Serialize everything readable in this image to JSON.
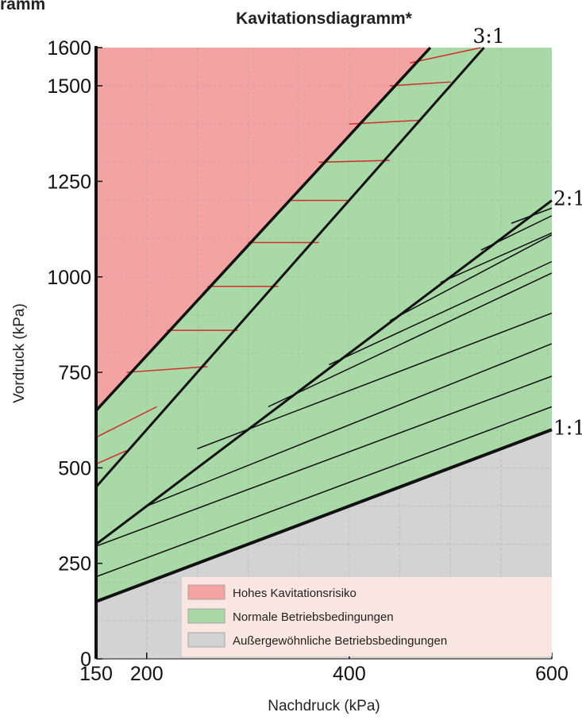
{
  "header": {
    "cropped_text": "ramm"
  },
  "chart_data": {
    "type": "area",
    "title": "Kavitationsdiagramm*",
    "xlabel": "Nachdruck (kPa)",
    "ylabel": "Vordruck (kPa)",
    "xlim": [
      150,
      600
    ],
    "ylim": [
      0,
      1600
    ],
    "x_ticks": [
      150,
      200,
      400,
      600
    ],
    "y_ticks": [
      0,
      250,
      500,
      750,
      1000,
      1250,
      1500,
      1600
    ],
    "grid": true,
    "regions": [
      {
        "name": "Hohes Kavitationsrisiko",
        "color": "#f4a3a3",
        "boundary": [
          [
            150,
            650
          ],
          [
            480,
            1600
          ],
          [
            150,
            1600
          ]
        ]
      },
      {
        "name": "Normale Betriebsbedingungen",
        "color": "#a9d9a6",
        "boundary": [
          [
            150,
            150
          ],
          [
            600,
            600
          ],
          [
            600,
            1600
          ],
          [
            480,
            1600
          ],
          [
            150,
            650
          ]
        ]
      },
      {
        "name": "Außergewöhnliche Betriebsbedingungen",
        "color": "#d3d3d3",
        "boundary": [
          [
            150,
            0
          ],
          [
            600,
            0
          ],
          [
            600,
            600
          ],
          [
            150,
            150
          ]
        ]
      }
    ],
    "ratio_lines": [
      {
        "label": "3:1",
        "points": [
          [
            150,
            450
          ],
          [
            533,
            1600
          ]
        ]
      },
      {
        "label": "2:1",
        "points": [
          [
            150,
            300
          ],
          [
            600,
            1200
          ]
        ]
      },
      {
        "label": "1:1",
        "points": [
          [
            150,
            150
          ],
          [
            600,
            600
          ]
        ]
      }
    ],
    "cavitation_limit": {
      "points": [
        [
          150,
          650
        ],
        [
          480,
          1600
        ]
      ]
    },
    "hatch_red": [
      [
        [
          150,
          510
        ],
        [
          180,
          545
        ]
      ],
      [
        [
          150,
          580
        ],
        [
          210,
          660
        ]
      ],
      [
        [
          180,
          750
        ],
        [
          260,
          765
        ]
      ],
      [
        [
          220,
          860
        ],
        [
          290,
          860
        ]
      ],
      [
        [
          260,
          975
        ],
        [
          330,
          975
        ]
      ],
      [
        [
          300,
          1090
        ],
        [
          370,
          1090
        ]
      ],
      [
        [
          340,
          1200
        ],
        [
          400,
          1200
        ]
      ],
      [
        [
          370,
          1300
        ],
        [
          440,
          1305
        ]
      ],
      [
        [
          400,
          1400
        ],
        [
          470,
          1410
        ]
      ],
      [
        [
          440,
          1500
        ],
        [
          500,
          1510
        ]
      ],
      [
        [
          460,
          1560
        ],
        [
          530,
          1600
        ]
      ]
    ],
    "hatch_black": [
      [
        [
          150,
          215
        ],
        [
          600,
          660
        ]
      ],
      [
        [
          150,
          295
        ],
        [
          600,
          740
        ]
      ],
      [
        [
          200,
          400
        ],
        [
          600,
          825
        ]
      ],
      [
        [
          250,
          550
        ],
        [
          600,
          905
        ]
      ],
      [
        [
          320,
          660
        ],
        [
          600,
          1010
        ]
      ],
      [
        [
          380,
          770
        ],
        [
          600,
          1040
        ]
      ],
      [
        [
          440,
          885
        ],
        [
          600,
          1110
        ]
      ],
      [
        [
          490,
          985
        ],
        [
          600,
          1115
        ]
      ],
      [
        [
          530,
          1070
        ],
        [
          600,
          1160
        ]
      ],
      [
        [
          560,
          1140
        ],
        [
          600,
          1180
        ]
      ]
    ],
    "legend": {
      "placement": "bottom-right",
      "entries": [
        {
          "name": "Hohes Kavitationsrisiko",
          "color": "#f4a3a3"
        },
        {
          "name": "Normale Betriebsbedingungen",
          "color": "#a9d9a6"
        },
        {
          "name": "Außergewöhnliche Betriebsbedingungen",
          "color": "#d3d3d3"
        }
      ]
    }
  }
}
